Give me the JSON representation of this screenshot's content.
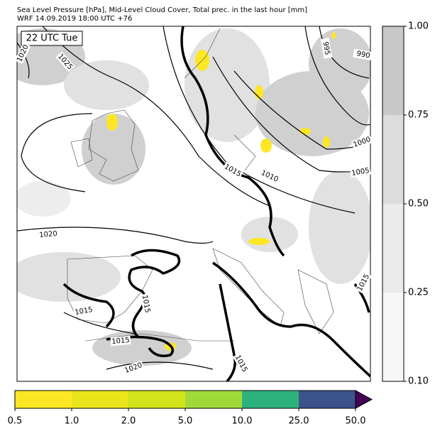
{
  "header": {
    "title": "Sea Level Pressure [hPa], Mid-Level Cloud Cover, Total prec. in the last hour [mm]",
    "subtitle": "WRF 14.09.2019 18:00 UTC +76"
  },
  "map": {
    "time_label": "22 UTC Tue",
    "isobar_labels": [
      "1020",
      "1025",
      "995",
      "990",
      "1000",
      "1005",
      "1010",
      "1015",
      "1020",
      "1015",
      "1015",
      "1015",
      "1020",
      "1015",
      "1015"
    ]
  },
  "cloud_colorbar": {
    "colors": [
      "#f7f7f7",
      "#ebebeb",
      "#dcdcdc",
      "#c8c8c8"
    ],
    "ticks": [
      {
        "value": 0.1,
        "label": "0.10"
      },
      {
        "value": 0.25,
        "label": "0.25"
      },
      {
        "value": 0.5,
        "label": "0.50"
      },
      {
        "value": 0.75,
        "label": "0.75"
      },
      {
        "value": 1,
        "label": "1.00"
      }
    ]
  },
  "precip_colorbar": {
    "colors": [
      "#fde725",
      "#eae51a",
      "#d2e21b",
      "#a0da39",
      "#2db27d",
      "#3b528b"
    ],
    "extend_color": "#440154",
    "ticks": [
      0.5,
      {
        "value": 1,
        "label": "1.0"
      },
      {
        "value": 2,
        "label": "2.0"
      },
      {
        "value": 5,
        "label": "5.0"
      },
      {
        "value": 10,
        "label": "10.0"
      },
      {
        "value": 25,
        "label": "25.0"
      },
      {
        "value": 50,
        "label": "50.0"
      }
    ]
  }
}
